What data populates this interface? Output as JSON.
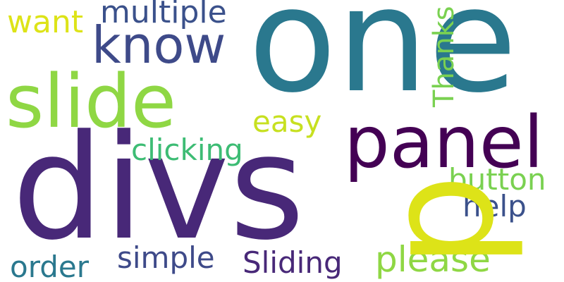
{
  "word_cloud": {
    "words": [
      {
        "key": "one",
        "text": "one",
        "color": "#2A788E"
      },
      {
        "key": "divs",
        "text": "divs",
        "color": "#482878"
      },
      {
        "key": "slide",
        "text": "slide",
        "color": "#8FD744"
      },
      {
        "key": "panel",
        "text": "panel",
        "color": "#440154"
      },
      {
        "key": "know",
        "text": "know",
        "color": "#3E4A89"
      },
      {
        "key": "multiple",
        "text": "multiple",
        "color": "#3B518B"
      },
      {
        "key": "want",
        "text": "want",
        "color": "#DDE318"
      },
      {
        "key": "Thanks",
        "text": "Thanks",
        "color": "#7AD151"
      },
      {
        "key": "easy",
        "text": "easy",
        "color": "#C7E020"
      },
      {
        "key": "clicking",
        "text": "clicking",
        "color": "#3DBC74"
      },
      {
        "key": "p",
        "text": "p",
        "color": "#DDE318"
      },
      {
        "key": "button",
        "text": "button",
        "color": "#7AD151"
      },
      {
        "key": "help",
        "text": "help",
        "color": "#3B518B"
      },
      {
        "key": "simple",
        "text": "simple",
        "color": "#3E4A89"
      },
      {
        "key": "Sliding",
        "text": "Sliding",
        "color": "#482878"
      },
      {
        "key": "please",
        "text": "please",
        "color": "#8FD744"
      },
      {
        "key": "order",
        "text": "order",
        "color": "#2A788E"
      }
    ]
  }
}
